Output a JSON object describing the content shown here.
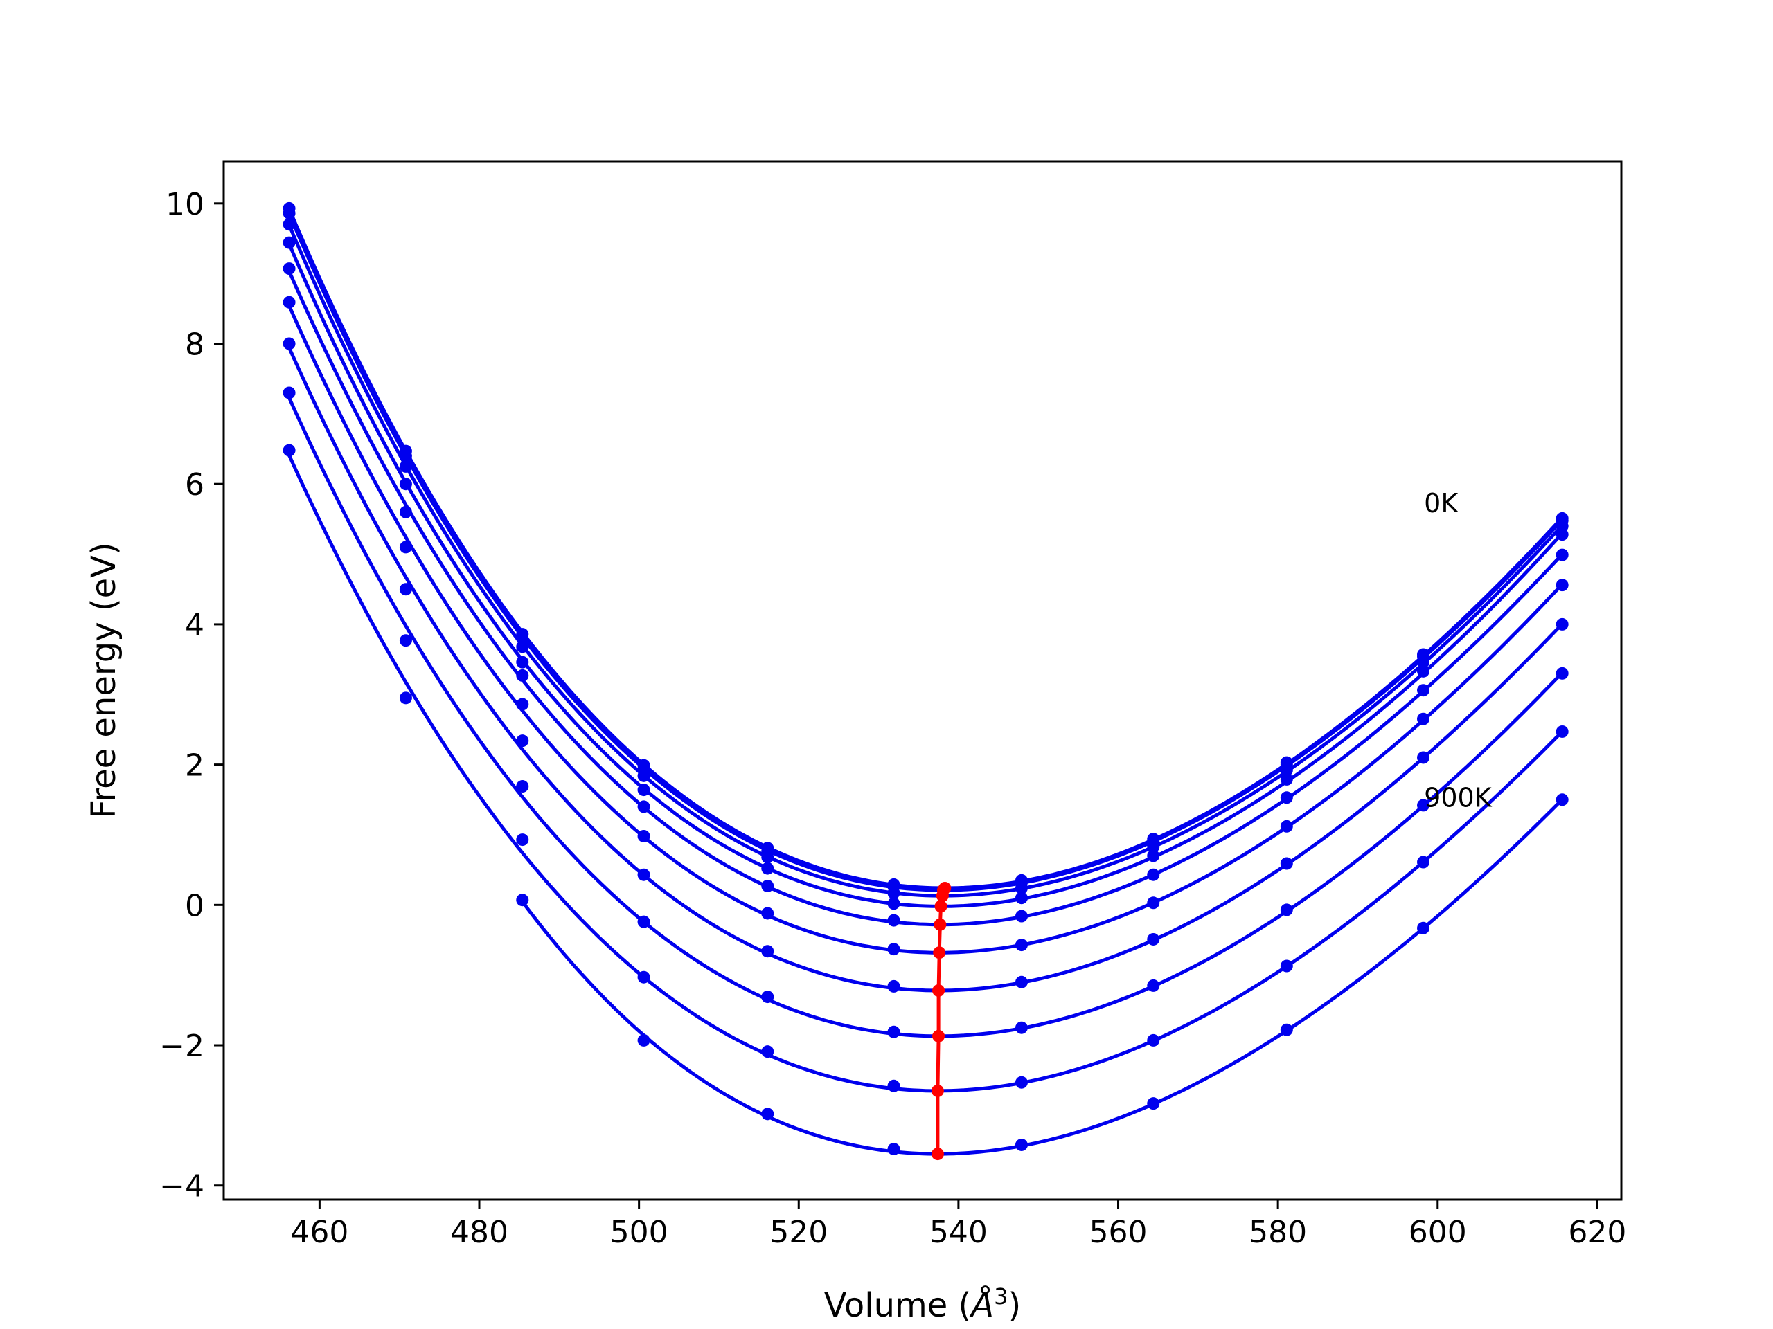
{
  "chart_data": {
    "type": "line",
    "title": "",
    "xlabel": "Volume",
    "xlabel_unit_base": "Å",
    "xlabel_unit_exp": "3",
    "ylabel": "Free energy (eV)",
    "xlim": [
      448,
      623
    ],
    "ylim": [
      -4.2,
      10.6
    ],
    "xticks": [
      460,
      480,
      500,
      520,
      540,
      560,
      580,
      600,
      620
    ],
    "xtick_labels": [
      "460",
      "480",
      "500",
      "520",
      "540",
      "560",
      "580",
      "600",
      "620"
    ],
    "yticks": [
      -4,
      -2,
      0,
      2,
      4,
      6,
      8,
      10
    ],
    "ytick_labels": [
      "−4",
      "−2",
      "0",
      "2",
      "4",
      "6",
      "8",
      "10"
    ],
    "grid": false,
    "legend": "none",
    "curve_color": "#0000ee",
    "minima_color": "#ff0000",
    "volumes": [
      456.2,
      470.8,
      485.4,
      500.6,
      516.1,
      531.9,
      547.9,
      564.4,
      581.1,
      598.2,
      615.6
    ],
    "series": [
      {
        "label": "0K",
        "values": [
          9.93,
          6.47,
          3.86,
          1.99,
          0.81,
          0.29,
          0.35,
          0.94,
          2.03,
          3.57,
          5.51
        ],
        "vmin": 538.3,
        "fmin": 0.24
      },
      {
        "label": "",
        "values": [
          9.86,
          6.4,
          3.8,
          1.94,
          0.77,
          0.26,
          0.32,
          0.91,
          2.0,
          3.54,
          5.48
        ],
        "vmin": 538.1,
        "fmin": 0.21
      },
      {
        "label": "",
        "values": [
          9.7,
          6.25,
          3.68,
          1.84,
          0.68,
          0.17,
          0.24,
          0.83,
          1.92,
          3.46,
          5.4
        ],
        "vmin": 538.0,
        "fmin": 0.13
      },
      {
        "label": "",
        "values": [
          9.44,
          6.0,
          3.46,
          1.64,
          0.52,
          0.02,
          0.1,
          0.7,
          1.79,
          3.33,
          5.28
        ],
        "vmin": 537.8,
        "fmin": -0.02
      },
      {
        "label": "",
        "values": [
          9.07,
          5.6,
          3.27,
          1.4,
          0.27,
          -0.22,
          -0.16,
          0.43,
          1.53,
          3.06,
          4.99
        ],
        "vmin": 537.7,
        "fmin": -0.28
      },
      {
        "label": "",
        "values": [
          8.59,
          5.1,
          2.86,
          0.98,
          -0.12,
          -0.63,
          -0.57,
          0.03,
          1.12,
          2.65,
          4.56
        ],
        "vmin": 537.6,
        "fmin": -0.68
      },
      {
        "label": "",
        "values": [
          8.0,
          4.5,
          2.34,
          0.43,
          -0.66,
          -1.16,
          -1.1,
          -0.49,
          0.59,
          2.1,
          4.0
        ],
        "vmin": 537.5,
        "fmin": -1.22
      },
      {
        "label": "",
        "values": [
          7.3,
          3.77,
          1.69,
          -0.24,
          -1.31,
          -1.81,
          -1.75,
          -1.15,
          -0.07,
          1.42,
          3.3
        ],
        "vmin": 537.5,
        "fmin": -1.87
      },
      {
        "label": "",
        "values": [
          6.48,
          2.95,
          0.93,
          -1.03,
          -2.09,
          -2.58,
          -2.53,
          -1.93,
          -0.87,
          0.61,
          2.47
        ],
        "vmin": 537.4,
        "fmin": -2.65
      },
      {
        "label": "900K",
        "values": [
          null,
          null,
          0.07,
          -1.93,
          -2.98,
          -3.48,
          -3.42,
          -2.83,
          -1.78,
          -0.33,
          1.5
        ],
        "vmin": 537.4,
        "fmin": -3.55
      }
    ],
    "annotations": [
      {
        "text": "0K",
        "x": 598.3,
        "y": 5.6
      },
      {
        "text": "900K",
        "x": 598.3,
        "y": 1.4
      }
    ]
  }
}
